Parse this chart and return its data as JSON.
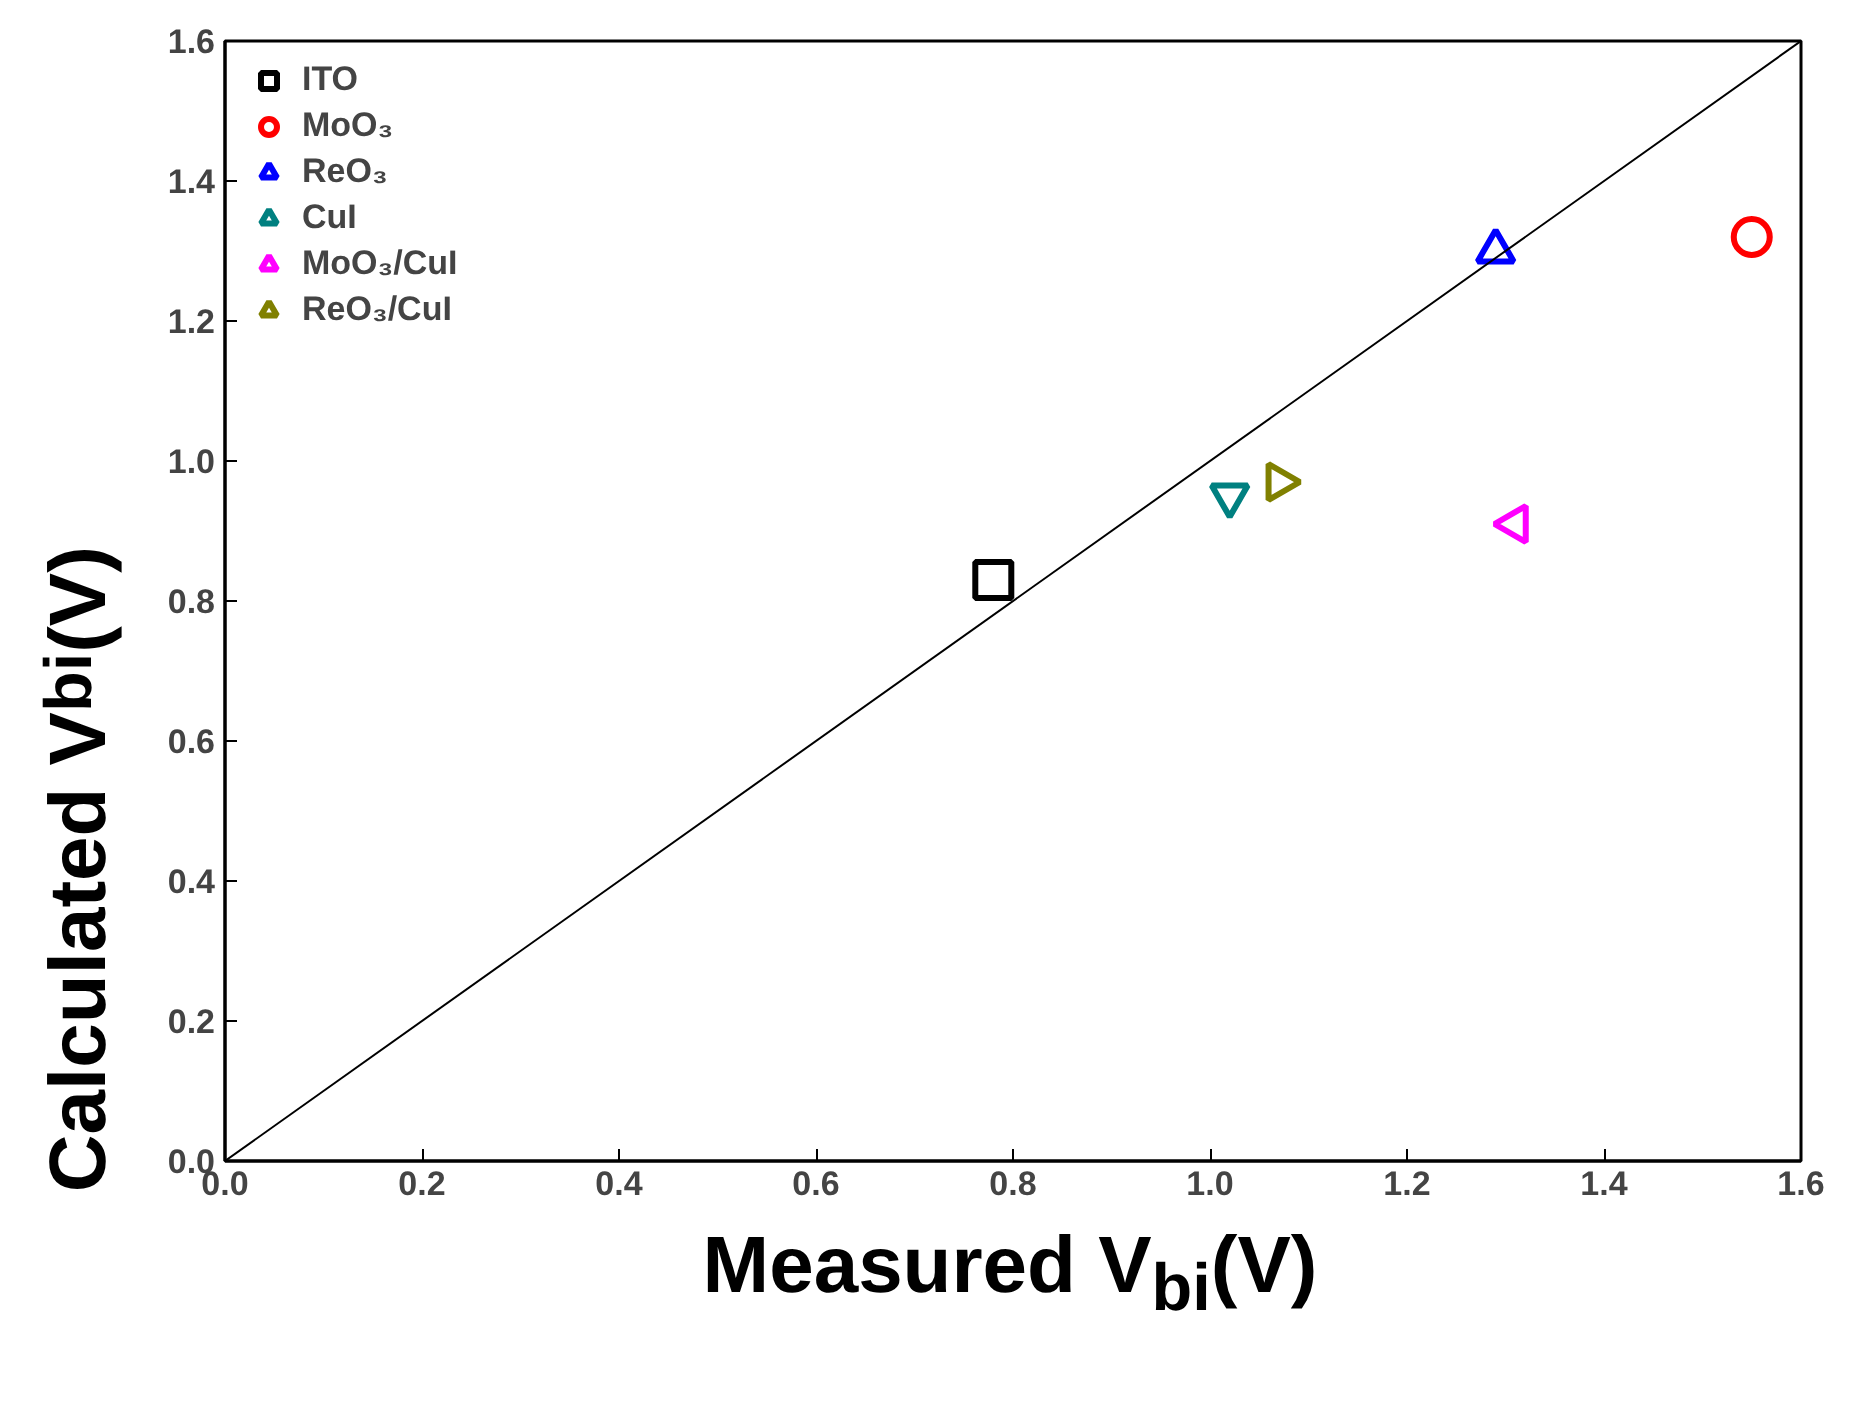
{
  "chart_data": {
    "type": "scatter",
    "xlabel": "Measured V$_{bi}$(V)",
    "ylabel": "Calculated V$_{bi}$(V)",
    "xlim": [
      0,
      1.6
    ],
    "ylim": [
      0,
      1.6
    ],
    "xticks": [
      {
        "value": 0,
        "label": "0.0"
      },
      0.2,
      0.4,
      0.6,
      0.8,
      {
        "value": 1,
        "label": "1.0"
      },
      1.2,
      1.4,
      1.6
    ],
    "yticks": [
      {
        "value": 0,
        "label": "0.0"
      },
      0.2,
      0.4,
      0.6,
      0.8,
      {
        "value": 1,
        "label": "1.0"
      },
      1.2,
      1.4,
      1.6
    ],
    "grid": false,
    "legend": "top left",
    "series": [
      {
        "name": "ITO",
        "color": "#000000",
        "marker": "square",
        "x": [
          0.78
        ],
        "values": [
          0.83
        ]
      },
      {
        "name": "MoO₃",
        "color": "#ff0000",
        "marker": "circle",
        "x": [
          1.55
        ],
        "values": [
          1.32
        ]
      },
      {
        "name": "ReO₃",
        "color": "#0000ff",
        "marker": "triangle",
        "x": [
          1.29
        ],
        "values": [
          1.3
        ]
      },
      {
        "name": "CuI",
        "color": "#008080",
        "marker": "triangle_down",
        "x": [
          1.02
        ],
        "values": [
          0.95
        ]
      },
      {
        "name": "MoO₃/CuI",
        "color": "#ff00ff",
        "marker": "triangle_left",
        "x": [
          1.31
        ],
        "values": [
          0.91
        ]
      },
      {
        "name": "ReO₃/CuI",
        "color": "#808000",
        "marker": "triangle_right",
        "x": [
          1.07
        ],
        "values": [
          0.97
        ]
      },
      {
        "type": "line",
        "color": "#000000",
        "x": [
          0,
          1.6
        ],
        "values": [
          0,
          1.6
        ]
      }
    ]
  }
}
